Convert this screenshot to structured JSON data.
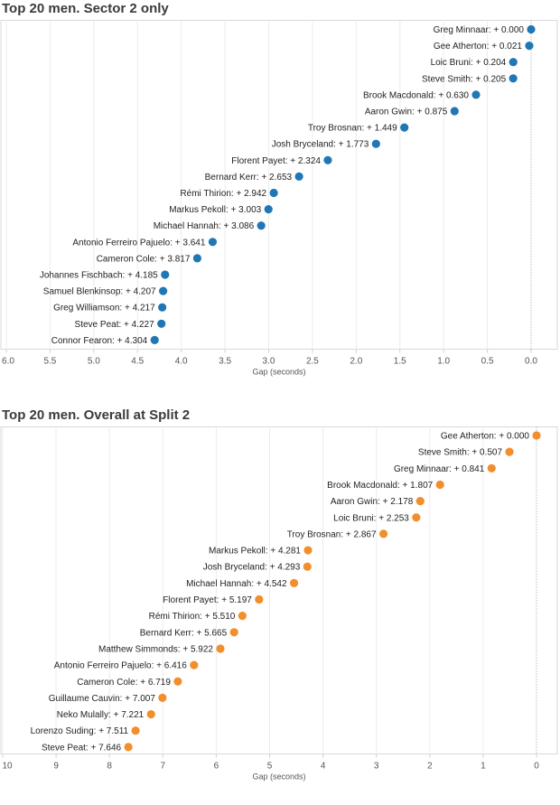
{
  "chart_data": [
    {
      "type": "scatter",
      "title": "Top 20 men. Sector 2 only",
      "xlabel": "Gap (seconds)",
      "ylabel": "",
      "x_reversed": true,
      "xlim": [
        0,
        6
      ],
      "xticks": [
        "6.0",
        "5.5",
        "5.0",
        "4.5",
        "4.0",
        "3.5",
        "3.0",
        "2.5",
        "2.0",
        "1.5",
        "1.0",
        "0.5",
        "0.0"
      ],
      "xtick_values": [
        6.0,
        5.5,
        5.0,
        4.5,
        4.0,
        3.5,
        3.0,
        2.5,
        2.0,
        1.5,
        1.0,
        0.5,
        0.0
      ],
      "grid": true,
      "reference_line": 0,
      "color": "#1f77b4",
      "points": [
        {
          "name": "Greg Minnaar",
          "gap": 0.0,
          "label": "Greg Minnaar: + 0.000"
        },
        {
          "name": "Gee Atherton",
          "gap": 0.021,
          "label": "Gee Atherton: + 0.021"
        },
        {
          "name": "Loic Bruni",
          "gap": 0.204,
          "label": "Loic Bruni: + 0.204"
        },
        {
          "name": "Steve Smith",
          "gap": 0.205,
          "label": "Steve Smith: + 0.205"
        },
        {
          "name": "Brook Macdonald",
          "gap": 0.63,
          "label": "Brook Macdonald: + 0.630"
        },
        {
          "name": "Aaron Gwin",
          "gap": 0.875,
          "label": "Aaron Gwin: + 0.875"
        },
        {
          "name": "Troy Brosnan",
          "gap": 1.449,
          "label": "Troy Brosnan: + 1.449"
        },
        {
          "name": "Josh Bryceland",
          "gap": 1.773,
          "label": "Josh Bryceland: + 1.773"
        },
        {
          "name": "Florent Payet",
          "gap": 2.324,
          "label": "Florent Payet: + 2.324"
        },
        {
          "name": "Bernard Kerr",
          "gap": 2.653,
          "label": "Bernard Kerr: + 2.653"
        },
        {
          "name": "Rémi Thirion",
          "gap": 2.942,
          "label": "Rémi Thirion: + 2.942"
        },
        {
          "name": "Markus Pekoll",
          "gap": 3.003,
          "label": "Markus Pekoll: + 3.003"
        },
        {
          "name": "Michael Hannah",
          "gap": 3.086,
          "label": "Michael Hannah: + 3.086"
        },
        {
          "name": "Antonio Ferreiro Pajuelo",
          "gap": 3.641,
          "label": "Antonio Ferreiro Pajuelo: + 3.641"
        },
        {
          "name": "Cameron Cole",
          "gap": 3.817,
          "label": "Cameron Cole: + 3.817"
        },
        {
          "name": "Johannes Fischbach",
          "gap": 4.185,
          "label": "Johannes Fischbach: + 4.185"
        },
        {
          "name": "Samuel Blenkinsop",
          "gap": 4.207,
          "label": "Samuel Blenkinsop: + 4.207"
        },
        {
          "name": "Greg Williamson",
          "gap": 4.217,
          "label": "Greg Williamson: + 4.217"
        },
        {
          "name": "Steve Peat",
          "gap": 4.227,
          "label": "Steve Peat: + 4.227"
        },
        {
          "name": "Connor Fearon",
          "gap": 4.304,
          "label": "Connor Fearon: + 4.304"
        }
      ]
    },
    {
      "type": "scatter",
      "title": "Top 20 men. Overall at Split 2",
      "xlabel": "Gap (seconds)",
      "ylabel": "",
      "x_reversed": true,
      "xlim": [
        0,
        10
      ],
      "xticks": [
        "10",
        "9",
        "8",
        "7",
        "6",
        "5",
        "4",
        "3",
        "2",
        "1",
        "0"
      ],
      "xtick_values": [
        10,
        9,
        8,
        7,
        6,
        5,
        4,
        3,
        2,
        1,
        0
      ],
      "grid": true,
      "reference_line": 0,
      "color": "#f28e2b",
      "points": [
        {
          "name": "Gee Atherton",
          "gap": 0.0,
          "label": "Gee Atherton: + 0.000"
        },
        {
          "name": "Steve Smith",
          "gap": 0.507,
          "label": "Steve Smith: + 0.507"
        },
        {
          "name": "Greg Minnaar",
          "gap": 0.841,
          "label": "Greg Minnaar: + 0.841"
        },
        {
          "name": "Brook Macdonald",
          "gap": 1.807,
          "label": "Brook Macdonald: + 1.807"
        },
        {
          "name": "Aaron Gwin",
          "gap": 2.178,
          "label": "Aaron Gwin: + 2.178"
        },
        {
          "name": "Loic Bruni",
          "gap": 2.253,
          "label": "Loic Bruni: + 2.253"
        },
        {
          "name": "Troy Brosnan",
          "gap": 2.867,
          "label": "Troy Brosnan: + 2.867"
        },
        {
          "name": "Markus Pekoll",
          "gap": 4.281,
          "label": "Markus Pekoll: + 4.281"
        },
        {
          "name": "Josh Bryceland",
          "gap": 4.293,
          "label": "Josh Bryceland: + 4.293"
        },
        {
          "name": "Michael Hannah",
          "gap": 4.542,
          "label": "Michael Hannah: + 4.542"
        },
        {
          "name": "Florent Payet",
          "gap": 5.197,
          "label": "Florent Payet: + 5.197"
        },
        {
          "name": "Rémi Thirion",
          "gap": 5.51,
          "label": "Rémi Thirion: + 5.510"
        },
        {
          "name": "Bernard Kerr",
          "gap": 5.665,
          "label": "Bernard Kerr: + 5.665"
        },
        {
          "name": "Matthew Simmonds",
          "gap": 5.922,
          "label": "Matthew Simmonds: + 5.922"
        },
        {
          "name": "Antonio Ferreiro Pajuelo",
          "gap": 6.416,
          "label": "Antonio Ferreiro Pajuelo: + 6.416"
        },
        {
          "name": "Cameron Cole",
          "gap": 6.719,
          "label": "Cameron Cole: + 6.719"
        },
        {
          "name": "Guillaume Cauvin",
          "gap": 7.007,
          "label": "Guillaume Cauvin: + 7.007"
        },
        {
          "name": "Neko Mulally",
          "gap": 7.221,
          "label": "Neko Mulally: + 7.221"
        },
        {
          "name": "Lorenzo Suding",
          "gap": 7.511,
          "label": "Lorenzo Suding: + 7.511"
        },
        {
          "name": "Steve Peat",
          "gap": 7.646,
          "label": "Steve Peat: + 7.646"
        }
      ]
    }
  ]
}
